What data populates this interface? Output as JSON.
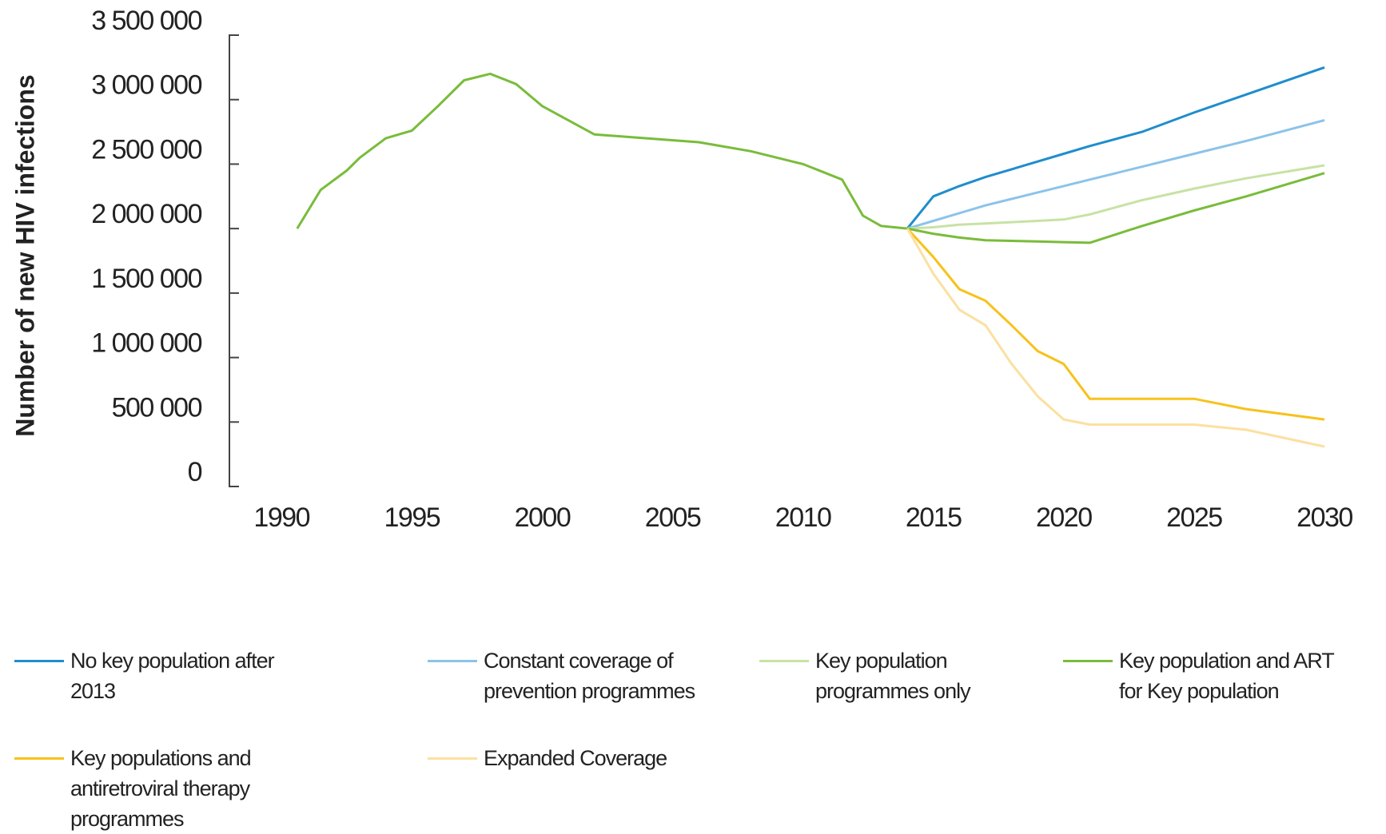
{
  "chart_data": {
    "type": "line",
    "y_label": "Number of new HIV infections",
    "x": [
      1990.6,
      1991.5,
      1992.5,
      1993,
      1994,
      1995,
      1996,
      1997,
      1998,
      1999,
      2000,
      2002,
      2004,
      2006,
      2008,
      2010,
      2011.5,
      2012.3,
      2013,
      2014,
      2015,
      2016,
      2017,
      2018,
      2019,
      2020,
      2021,
      2023,
      2025,
      2027,
      2030
    ],
    "xlim": [
      1988,
      2030
    ],
    "xticks": [
      1990,
      1995,
      2000,
      2005,
      2010,
      2015,
      2020,
      2025,
      2030
    ],
    "ylim": [
      0,
      3500000
    ],
    "yticks": [
      {
        "value": 0,
        "label": "0"
      },
      {
        "value": 500000,
        "label": "500 000"
      },
      {
        "value": 1000000,
        "label": "1 000 000"
      },
      {
        "value": 1500000,
        "label": "1 500 000"
      },
      {
        "value": 2000000,
        "label": "2 000 000"
      },
      {
        "value": 2500000,
        "label": "2 500 000"
      },
      {
        "value": 3000000,
        "label": "3 000 000"
      },
      {
        "value": 3500000,
        "label": "3 500 000"
      }
    ],
    "series": [
      {
        "name": "No key population after 2013",
        "color": "#1f8dcc",
        "values": [
          null,
          null,
          null,
          null,
          null,
          null,
          null,
          null,
          null,
          null,
          null,
          null,
          null,
          null,
          null,
          null,
          null,
          null,
          null,
          2000000,
          2250000,
          2330000,
          2400000,
          2460000,
          2520000,
          2580000,
          2640000,
          2750000,
          2900000,
          3040000,
          3250000
        ]
      },
      {
        "name": "Constant coverage of prevention programmes",
        "color": "#8cc3ea",
        "values": [
          null,
          null,
          null,
          null,
          null,
          null,
          null,
          null,
          null,
          null,
          null,
          null,
          null,
          null,
          null,
          null,
          null,
          null,
          null,
          2000000,
          2060000,
          2120000,
          2180000,
          2230000,
          2280000,
          2330000,
          2380000,
          2480000,
          2580000,
          2680000,
          2840000
        ]
      },
      {
        "name": "Key population programmes only",
        "color": "#c8e2a4",
        "values": [
          null,
          null,
          null,
          null,
          null,
          null,
          null,
          null,
          null,
          null,
          null,
          null,
          null,
          null,
          null,
          null,
          null,
          null,
          null,
          2000000,
          2010000,
          2030000,
          2040000,
          2050000,
          2060000,
          2070000,
          2110000,
          2220000,
          2310000,
          2390000,
          2490000
        ]
      },
      {
        "name": "Key population and ART for Key population",
        "color": "#79bc3a",
        "values": [
          2000000,
          2300000,
          2450000,
          2550000,
          2700000,
          2760000,
          2950000,
          3150000,
          3200000,
          3120000,
          2950000,
          2730000,
          2700000,
          2670000,
          2600000,
          2500000,
          2380000,
          2100000,
          2020000,
          2000000,
          1960000,
          1930000,
          1910000,
          1905000,
          1900000,
          1895000,
          1890000,
          2020000,
          2140000,
          2250000,
          2430000
        ]
      },
      {
        "name": "Key populations and antiretroviral therapy programmes",
        "color": "#f7c21b",
        "values": [
          null,
          null,
          null,
          null,
          null,
          null,
          null,
          null,
          null,
          null,
          null,
          null,
          null,
          null,
          null,
          null,
          null,
          null,
          null,
          2000000,
          1780000,
          1530000,
          1440000,
          1250000,
          1050000,
          950000,
          680000,
          680000,
          680000,
          600000,
          520000
        ]
      },
      {
        "name": "Expanded Coverage",
        "color": "#fbe0a0",
        "values": [
          null,
          null,
          null,
          null,
          null,
          null,
          null,
          null,
          null,
          null,
          null,
          null,
          null,
          null,
          null,
          null,
          null,
          null,
          null,
          2000000,
          1650000,
          1370000,
          1250000,
          950000,
          700000,
          520000,
          480000,
          480000,
          480000,
          440000,
          310000
        ]
      }
    ]
  }
}
